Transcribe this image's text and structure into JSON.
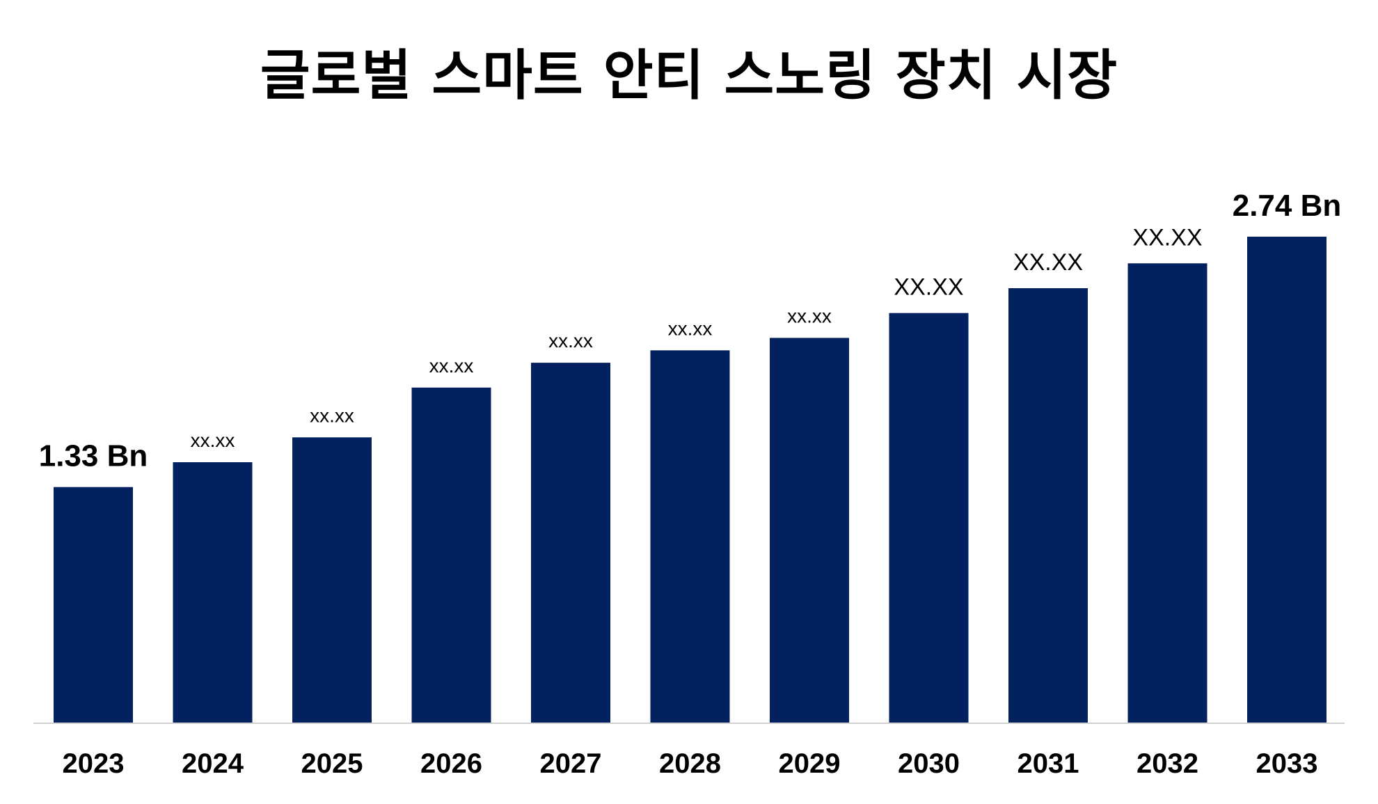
{
  "chart_data": {
    "type": "bar",
    "title": "글로벌 스마트 안티 스노링 장치 시장",
    "xlabel": "",
    "ylabel": "",
    "categories": [
      "2023",
      "2024",
      "2025",
      "2026",
      "2027",
      "2028",
      "2029",
      "2030",
      "2031",
      "2032",
      "2033"
    ],
    "values": [
      1.33,
      1.47,
      1.61,
      1.89,
      2.03,
      2.1,
      2.17,
      2.31,
      2.45,
      2.59,
      2.74
    ],
    "data_labels": [
      "1.33 Bn",
      "xx.xx",
      "xx.xx",
      "xx.xx",
      "xx.xx",
      "xx.xx",
      "xx.xx",
      "XX.XX",
      "XX.XX",
      "XX.XX",
      "2.74 Bn"
    ],
    "ylim": [
      0,
      2.74
    ],
    "grid": false,
    "legend": "none",
    "bar_color": "#03215E",
    "axis_color": "#D0D0D0"
  }
}
